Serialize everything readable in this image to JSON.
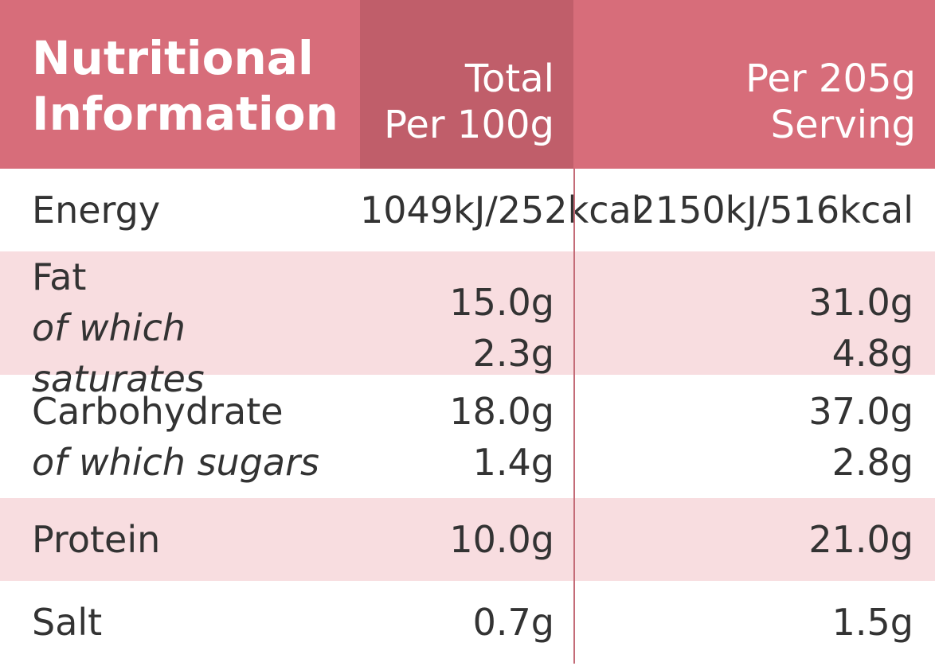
{
  "header": {
    "title": [
      "Nutritional",
      "Information"
    ],
    "columns": [
      [
        "Total",
        "Per 100g"
      ],
      [
        "Per 205g",
        "Serving"
      ]
    ]
  },
  "rows": [
    {
      "lines": [
        {
          "label": "Energy",
          "values": [
            "1049kJ/252kcal",
            "2150kJ/516kcal"
          ]
        }
      ]
    },
    {
      "lines": [
        {
          "label": "Fat",
          "values": [
            "15.0g",
            "31.0g"
          ]
        },
        {
          "label": "of which saturates",
          "italic": true,
          "values": [
            "2.3g",
            "4.8g"
          ]
        }
      ]
    },
    {
      "lines": [
        {
          "label": "Carbohydrate",
          "values": [
            "18.0g",
            "37.0g"
          ]
        },
        {
          "label": "of which sugars",
          "italic": true,
          "values": [
            "1.4g",
            "2.8g"
          ]
        }
      ]
    },
    {
      "lines": [
        {
          "label": "Protein",
          "values": [
            "10.0g",
            "21.0g"
          ]
        }
      ]
    },
    {
      "lines": [
        {
          "label": "Salt",
          "values": [
            "0.7g",
            "1.5g"
          ]
        }
      ]
    }
  ]
}
